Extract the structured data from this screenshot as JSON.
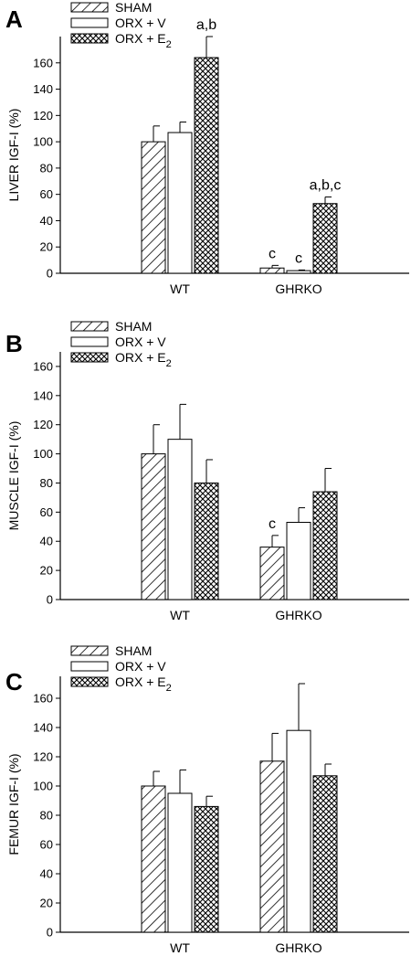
{
  "legend": [
    {
      "label": "SHAM",
      "pattern": "hatch"
    },
    {
      "label": "ORX + V",
      "pattern": "open"
    },
    {
      "label": "ORX + E",
      "sub": "2",
      "pattern": "cross"
    }
  ],
  "chart_data": [
    {
      "type": "bar",
      "panel": "A",
      "ylabel": "LIVER IGF-I (%)",
      "ylim": [
        0,
        180
      ],
      "yticks": [
        0,
        20,
        40,
        60,
        80,
        100,
        120,
        140,
        160
      ],
      "categories": [
        "WT",
        "GHRKO"
      ],
      "series": [
        {
          "name": "SHAM",
          "values": [
            100,
            4
          ],
          "errors": [
            12,
            2
          ],
          "labels": [
            "",
            "c"
          ]
        },
        {
          "name": "ORX + V",
          "values": [
            107,
            2
          ],
          "errors": [
            8,
            0.5
          ],
          "labels": [
            "",
            "c"
          ]
        },
        {
          "name": "ORX + E2",
          "values": [
            164,
            53
          ],
          "errors": [
            16,
            5
          ],
          "labels": [
            "a,b",
            "a,b,c"
          ]
        }
      ]
    },
    {
      "type": "bar",
      "panel": "B",
      "ylabel": "MUSCLE IGF-I (%)",
      "ylim": [
        0,
        170
      ],
      "yticks": [
        0,
        20,
        40,
        60,
        80,
        100,
        120,
        140,
        160
      ],
      "categories": [
        "WT",
        "GHRKO"
      ],
      "series": [
        {
          "name": "SHAM",
          "values": [
            100,
            36
          ],
          "errors": [
            20,
            8
          ],
          "labels": [
            "",
            "c"
          ]
        },
        {
          "name": "ORX + V",
          "values": [
            110,
            53
          ],
          "errors": [
            24,
            10
          ],
          "labels": [
            "",
            ""
          ]
        },
        {
          "name": "ORX + E2",
          "values": [
            80,
            74
          ],
          "errors": [
            16,
            16
          ],
          "labels": [
            "",
            ""
          ]
        }
      ]
    },
    {
      "type": "bar",
      "panel": "C",
      "ylabel": "FEMUR IGF-I (%)",
      "ylim": [
        0,
        175
      ],
      "yticks": [
        0,
        20,
        40,
        60,
        80,
        100,
        120,
        140,
        160
      ],
      "categories": [
        "WT",
        "GHRKO"
      ],
      "series": [
        {
          "name": "SHAM",
          "values": [
            100,
            117
          ],
          "errors": [
            10,
            19
          ],
          "labels": [
            "",
            ""
          ]
        },
        {
          "name": "ORX + V",
          "values": [
            95,
            138
          ],
          "errors": [
            16,
            32
          ],
          "labels": [
            "",
            ""
          ]
        },
        {
          "name": "ORX + E2",
          "values": [
            86,
            107
          ],
          "errors": [
            7,
            8
          ],
          "labels": [
            "",
            ""
          ]
        }
      ]
    }
  ]
}
